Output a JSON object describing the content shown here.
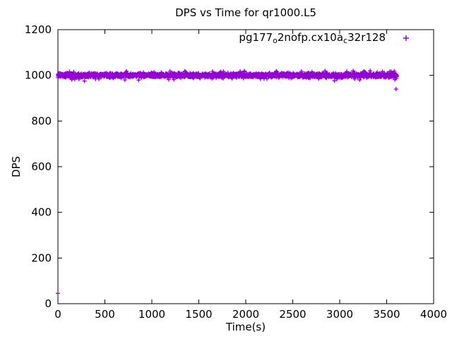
{
  "window": {
    "background": "#ffffff",
    "foreground": "#000000"
  },
  "chart_data": {
    "type": "scatter",
    "title": "DPS vs Time for qr1000.L5",
    "xlabel": "Time(s)",
    "ylabel": "DPS",
    "xlim": [
      0,
      4000
    ],
    "ylim": [
      0,
      1200
    ],
    "x_ticks": [
      0,
      500,
      1000,
      1500,
      2000,
      2500,
      3000,
      3500,
      4000
    ],
    "y_ticks": [
      0,
      200,
      400,
      600,
      800,
      1000,
      1200
    ],
    "grid": false,
    "tick_style": "inward-mirrored-all-borders",
    "legend": {
      "position": "top-right-inside",
      "label": "pg177_o2nofp.cx10a_c32r128",
      "label_segments": [
        {
          "text": "pg177",
          "subscript": false
        },
        {
          "text": "o",
          "subscript": true
        },
        {
          "text": "2nofp.cx10a",
          "subscript": false
        },
        {
          "text": "c",
          "subscript": true
        },
        {
          "text": "32r128",
          "subscript": false
        }
      ],
      "marker": "plus",
      "color": "#9400d3"
    },
    "series": [
      {
        "name": "pg177_o2nofp.cx10a_c32r128",
        "marker": "plus",
        "color": "#9400d3",
        "description": "Dense band of per-second DPS samples holding steady near 1000 DPS for the full hour",
        "band": {
          "x_start": 0,
          "x_end": 3610,
          "y_center": 1000,
          "y_typical_spread": 10,
          "y_min": 975,
          "y_max": 1020,
          "approx_n_points": 3600
        },
        "outlier_points": [
          [
            0,
            45
          ],
          [
            3600,
            940
          ]
        ]
      }
    ]
  }
}
